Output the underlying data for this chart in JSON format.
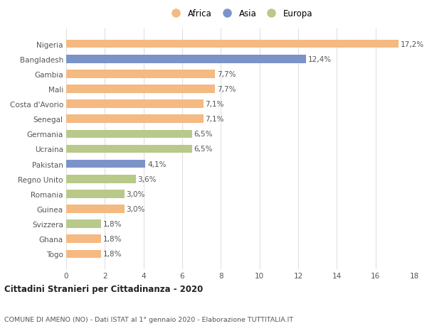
{
  "categories": [
    "Nigeria",
    "Bangladesh",
    "Gambia",
    "Mali",
    "Costa d'Avorio",
    "Senegal",
    "Germania",
    "Ucraina",
    "Pakistan",
    "Regno Unito",
    "Romania",
    "Guinea",
    "Svizzera",
    "Ghana",
    "Togo"
  ],
  "values": [
    17.2,
    12.4,
    7.7,
    7.7,
    7.1,
    7.1,
    6.5,
    6.5,
    4.1,
    3.6,
    3.0,
    3.0,
    1.8,
    1.8,
    1.8
  ],
  "labels": [
    "17,2%",
    "12,4%",
    "7,7%",
    "7,7%",
    "7,1%",
    "7,1%",
    "6,5%",
    "6,5%",
    "4,1%",
    "3,6%",
    "3,0%",
    "3,0%",
    "1,8%",
    "1,8%",
    "1,8%"
  ],
  "continents": [
    "Africa",
    "Asia",
    "Africa",
    "Africa",
    "Africa",
    "Africa",
    "Europa",
    "Europa",
    "Asia",
    "Europa",
    "Europa",
    "Africa",
    "Europa",
    "Africa",
    "Africa"
  ],
  "colors": {
    "Africa": "#f5b982",
    "Asia": "#7b93c9",
    "Europa": "#b8c98a"
  },
  "xlim": [
    0,
    18
  ],
  "xticks": [
    0,
    2,
    4,
    6,
    8,
    10,
    12,
    14,
    16,
    18
  ],
  "title": "Cittadini Stranieri per Cittadinanza - 2020",
  "subtitle": "COMUNE DI AMENO (NO) - Dati ISTAT al 1° gennaio 2020 - Elaborazione TUTTITALIA.IT",
  "background_color": "#ffffff",
  "bar_height": 0.55,
  "grid_color": "#e0e0e0",
  "label_fontsize": 7.5,
  "ytick_fontsize": 7.5,
  "xtick_fontsize": 7.5
}
